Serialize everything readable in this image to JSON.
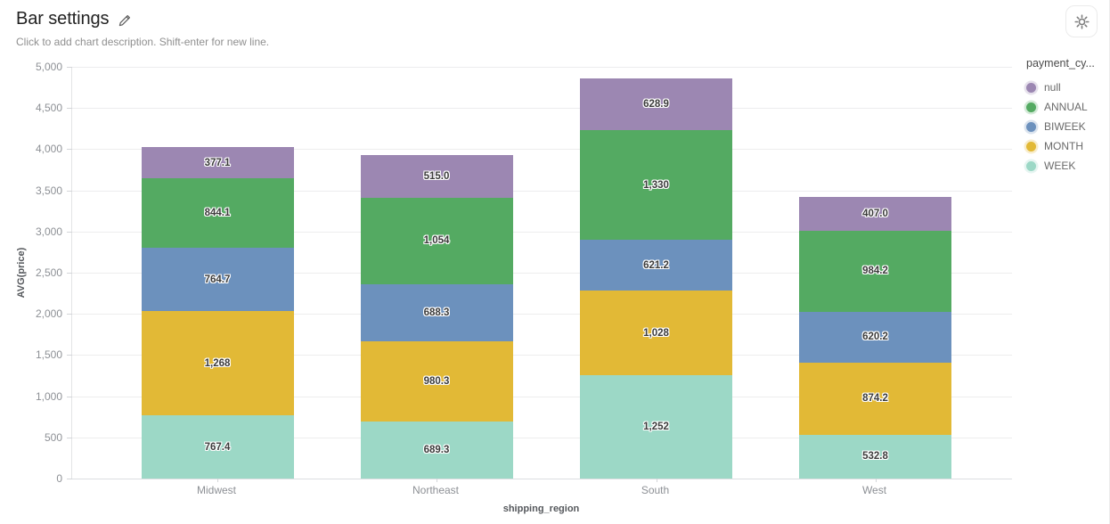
{
  "header": {
    "title": "Bar settings",
    "subtitle": "Click to add chart description. Shift-enter for new line.",
    "edit_icon": "pencil-icon",
    "settings_icon": "gear-icon"
  },
  "legend": {
    "title": "payment_cy...",
    "items": [
      {
        "label": "null",
        "color": "#9c87b2"
      },
      {
        "label": "ANNUAL",
        "color": "#54aa62"
      },
      {
        "label": "BIWEEK",
        "color": "#6c91bd"
      },
      {
        "label": "MONTH",
        "color": "#e2b936"
      },
      {
        "label": "WEEK",
        "color": "#9cd8c6"
      }
    ]
  },
  "chart_data": {
    "type": "bar",
    "stacked": true,
    "title": "Bar settings",
    "xlabel": "shipping_region",
    "ylabel": "AVG(price)",
    "ylim": [
      0,
      5000
    ],
    "ytick_step": 500,
    "ytick_labels": [
      "0",
      "500",
      "1,000",
      "1,500",
      "2,000",
      "2,500",
      "3,000",
      "3,500",
      "4,000",
      "4,500",
      "5,000"
    ],
    "grid": true,
    "legend_position": "right",
    "categories": [
      "Midwest",
      "Northeast",
      "South",
      "West"
    ],
    "series": [
      {
        "name": "WEEK",
        "color": "#9cd8c6",
        "values": [
          767.4,
          689.3,
          1252,
          532.8
        ],
        "labels": [
          "767.4",
          "689.3",
          "1,252",
          "532.8"
        ]
      },
      {
        "name": "MONTH",
        "color": "#e2b936",
        "values": [
          1268,
          980.3,
          1028,
          874.2
        ],
        "labels": [
          "1,268",
          "980.3",
          "1,028",
          "874.2"
        ]
      },
      {
        "name": "BIWEEK",
        "color": "#6c91bd",
        "values": [
          764.7,
          688.3,
          621.2,
          620.2
        ],
        "labels": [
          "764.7",
          "688.3",
          "621.2",
          "620.2"
        ]
      },
      {
        "name": "ANNUAL",
        "color": "#54aa62",
        "values": [
          844.1,
          1054,
          1330,
          984.2
        ],
        "labels": [
          "844.1",
          "1,054",
          "1,330",
          "984.2"
        ]
      },
      {
        "name": "null",
        "color": "#9c87b2",
        "values": [
          377.1,
          515.0,
          628.9,
          407.0
        ],
        "labels": [
          "377.1",
          "515.0",
          "628.9",
          "407.0"
        ]
      }
    ]
  }
}
